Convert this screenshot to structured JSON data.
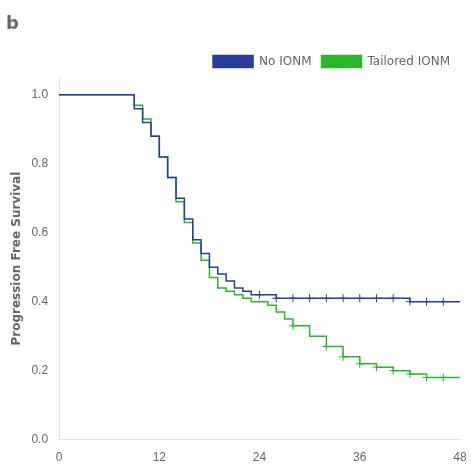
{
  "chart_data": {
    "type": "step",
    "title": "b",
    "ylabel": "Progression Free Survival",
    "xlim": [
      0,
      48
    ],
    "ylim": [
      0.0,
      1.05
    ],
    "xticks": [
      0,
      12,
      24,
      36,
      48
    ],
    "yticks": [
      {
        "value": 0.0,
        "label": "0.0"
      },
      0.2,
      0.4,
      0.6,
      0.8,
      {
        "value": 1.0,
        "label": "1.0"
      }
    ],
    "grid": false,
    "legend": "upper right",
    "series": [
      {
        "name": "No IONM",
        "color": "#2a3d9a",
        "marker": "cross",
        "x": [
          0,
          8,
          9,
          10,
          11,
          12,
          13,
          14,
          15,
          16,
          17,
          18,
          19,
          20,
          21,
          22,
          23,
          24,
          25,
          26,
          27,
          28,
          29,
          30,
          32,
          34,
          36,
          38,
          40,
          42,
          44,
          46,
          48
        ],
        "values": [
          1.0,
          1.0,
          0.96,
          0.92,
          0.88,
          0.82,
          0.76,
          0.7,
          0.64,
          0.58,
          0.54,
          0.5,
          0.48,
          0.46,
          0.44,
          0.43,
          0.42,
          0.42,
          0.42,
          0.41,
          0.41,
          0.41,
          0.41,
          0.41,
          0.41,
          0.41,
          0.41,
          0.41,
          0.41,
          0.4,
          0.4,
          0.4,
          0.4
        ],
        "censor_x": [
          24,
          26,
          28,
          30,
          32,
          34,
          36,
          38,
          40,
          42,
          44,
          46
        ],
        "censor_values": [
          0.42,
          0.41,
          0.41,
          0.41,
          0.41,
          0.41,
          0.41,
          0.41,
          0.41,
          0.4,
          0.4,
          0.4
        ]
      },
      {
        "name": "Tailored IONM",
        "color": "#2db52d",
        "marker": "cross",
        "x": [
          0,
          8,
          9,
          10,
          11,
          12,
          13,
          14,
          15,
          16,
          17,
          18,
          19,
          20,
          21,
          22,
          23,
          24,
          25,
          26,
          27,
          28,
          30,
          32,
          34,
          36,
          38,
          40,
          42,
          44,
          46,
          48
        ],
        "values": [
          1.0,
          1.0,
          0.97,
          0.93,
          0.88,
          0.82,
          0.76,
          0.69,
          0.63,
          0.57,
          0.52,
          0.47,
          0.44,
          0.43,
          0.42,
          0.41,
          0.4,
          0.4,
          0.39,
          0.37,
          0.35,
          0.33,
          0.3,
          0.27,
          0.24,
          0.22,
          0.21,
          0.2,
          0.19,
          0.18,
          0.18,
          0.18
        ],
        "censor_x": [
          28,
          32,
          34,
          36,
          38,
          40,
          42,
          44,
          46
        ],
        "censor_values": [
          0.33,
          0.27,
          0.24,
          0.22,
          0.21,
          0.2,
          0.19,
          0.18,
          0.18
        ]
      }
    ]
  }
}
